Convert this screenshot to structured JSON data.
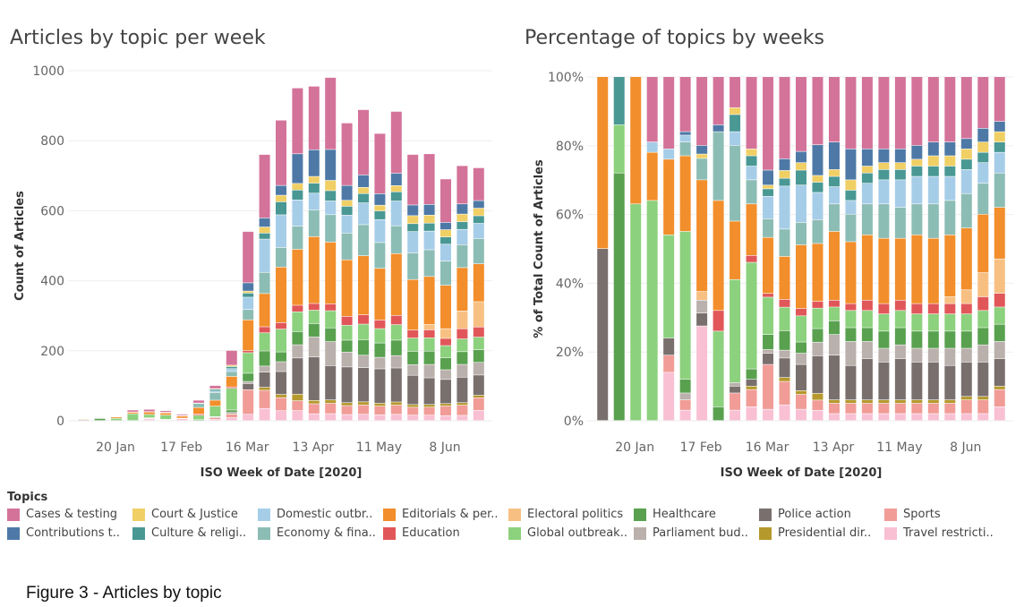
{
  "caption": "Figure 3 - Articles by topic",
  "legend": {
    "title": "Topics",
    "items": [
      {
        "label": "Cases & testing",
        "color": "#d4739a"
      },
      {
        "label": "Court & Justice",
        "color": "#f0cf65"
      },
      {
        "label": "Domestic outbr..",
        "color": "#a6cde8"
      },
      {
        "label": "Editorials & per..",
        "color": "#f28e2b"
      },
      {
        "label": "Electoral politics",
        "color": "#f7c082"
      },
      {
        "label": "Healthcare",
        "color": "#59a14f"
      },
      {
        "label": "Police action",
        "color": "#79706e"
      },
      {
        "label": "Sports",
        "color": "#f19c97"
      },
      {
        "label": "Contributions t..",
        "color": "#4e79a7"
      },
      {
        "label": "Culture & religi..",
        "color": "#499894"
      },
      {
        "label": "Economy & fina..",
        "color": "#8cbdb5"
      },
      {
        "label": "Education",
        "color": "#e15759"
      },
      {
        "label": "Global outbreak..",
        "color": "#8cd17d"
      },
      {
        "label": "Parliament bud..",
        "color": "#bab0ac"
      },
      {
        "label": "Presidential dir..",
        "color": "#b6992d"
      },
      {
        "label": "Travel restricti..",
        "color": "#f9c0d4"
      }
    ]
  },
  "chart_data": [
    {
      "type": "bar",
      "stacked": true,
      "title": "Articles by topic per week",
      "xlabel": "ISO Week of Date [2020]",
      "ylabel": "Count of Articles",
      "ylim": [
        0,
        1000
      ],
      "yticks": [
        "0",
        "200",
        "400",
        "600",
        "800",
        "1000"
      ],
      "xtick_labels": [
        {
          "week": 4,
          "label": "20 Jan"
        },
        {
          "week": 8,
          "label": "17 Feb"
        },
        {
          "week": 12,
          "label": "16 Mar"
        },
        {
          "week": 16,
          "label": "13 Apr"
        },
        {
          "week": 20,
          "label": "11 May"
        },
        {
          "week": 24,
          "label": "8 Jun"
        }
      ],
      "weeks": [
        2,
        3,
        4,
        5,
        6,
        7,
        8,
        9,
        10,
        11,
        12,
        13,
        14,
        15,
        16,
        17,
        18,
        19,
        20,
        21,
        22,
        23,
        24,
        25,
        26
      ],
      "stack_order": [
        "Travel restricti..",
        "Sports",
        "Presidential dir..",
        "Police action",
        "Parliament bud..",
        "Healthcare",
        "Global outbreak..",
        "Education",
        "Electoral politics",
        "Editorials & per..",
        "Economy & fina..",
        "Domestic outbr..",
        "Culture & religi..",
        "Court & Justice",
        "Contributions t..",
        "Cases & testing"
      ],
      "totals": [
        4,
        8,
        10,
        30,
        32,
        28,
        18,
        58,
        100,
        200,
        540,
        760,
        858,
        950,
        955,
        980,
        850,
        888,
        820,
        883,
        760,
        762,
        690,
        728,
        722
      ],
      "shares": [
        [
          0,
          0,
          0,
          0.5,
          0,
          0,
          0,
          0,
          0,
          0.5,
          0,
          0,
          0,
          0,
          0,
          0
        ],
        [
          0,
          0,
          0,
          0,
          0,
          0.72,
          0.14,
          0,
          0,
          0,
          0,
          0,
          0.14,
          0,
          0,
          0
        ],
        [
          0,
          0,
          0,
          0,
          0,
          0,
          0.63,
          0,
          0,
          0.37,
          0,
          0,
          0,
          0,
          0,
          0
        ],
        [
          0,
          0,
          0,
          0,
          0,
          0,
          0.64,
          0,
          0,
          0.14,
          0,
          0.03,
          0,
          0,
          0,
          0.19
        ],
        [
          0.14,
          0.05,
          0,
          0.05,
          0,
          0,
          0.3,
          0,
          0,
          0.22,
          0,
          0.03,
          0,
          0,
          0,
          0.21
        ],
        [
          0.03,
          0.03,
          0,
          0,
          0.02,
          0.04,
          0.43,
          0,
          0,
          0.22,
          0.04,
          0.02,
          0,
          0,
          0.01,
          0.16
        ],
        [
          0.22,
          0,
          0,
          0.03,
          0.03,
          0,
          0,
          0,
          0.02,
          0.26,
          0.05,
          0,
          0,
          0.01,
          0.02,
          0.16
        ],
        [
          0,
          0,
          0,
          0,
          0,
          0.04,
          0.22,
          0.06,
          0,
          0.32,
          0.2,
          0,
          0,
          0,
          0.02,
          0.14
        ],
        [
          0.03,
          0.05,
          0,
          0.02,
          0.01,
          0,
          0.3,
          0,
          0,
          0.17,
          0.22,
          0.04,
          0.05,
          0.02,
          0,
          0.09
        ],
        [
          0.04,
          0.05,
          0.01,
          0.02,
          0,
          0.03,
          0.31,
          0.02,
          0,
          0.15,
          0.07,
          0.04,
          0.03,
          0.02,
          0,
          0.21
        ],
        [
          0.03,
          0.12,
          0,
          0.03,
          0.01,
          0.04,
          0.1,
          0.01,
          0,
          0.15,
          0.05,
          0.06,
          0.02,
          0.01,
          0.04,
          0.25
        ],
        [
          0.04,
          0.06,
          0.01,
          0.05,
          0.02,
          0.05,
          0.06,
          0.02,
          0,
          0.11,
          0.07,
          0.11,
          0.02,
          0.02,
          0.03,
          0.21
        ],
        [
          0.03,
          0.04,
          0.01,
          0.07,
          0.03,
          0.03,
          0.07,
          0.02,
          0,
          0.17,
          0.06,
          0.1,
          0.04,
          0.02,
          0.03,
          0.2
        ],
        [
          0.03,
          0.03,
          0.02,
          0.11,
          0.04,
          0.04,
          0.06,
          0.02,
          0,
          0.17,
          0.07,
          0.08,
          0.03,
          0.02,
          0.09,
          0.2
        ],
        [
          0.02,
          0.03,
          0.01,
          0.13,
          0.06,
          0.04,
          0.04,
          0.02,
          0,
          0.2,
          0.08,
          0.05,
          0.03,
          0.02,
          0.08,
          0.19
        ],
        [
          0.02,
          0.03,
          0.01,
          0.1,
          0.07,
          0.04,
          0.05,
          0.02,
          0,
          0.18,
          0.08,
          0.04,
          0.03,
          0.03,
          0.09,
          0.21
        ],
        [
          0.02,
          0.03,
          0.01,
          0.12,
          0.05,
          0.04,
          0.05,
          0.03,
          0,
          0.19,
          0.09,
          0.06,
          0.03,
          0.02,
          0.05,
          0.21
        ],
        [
          0.02,
          0.03,
          0.01,
          0.11,
          0.04,
          0.05,
          0.05,
          0.03,
          0,
          0.19,
          0.1,
          0.07,
          0.03,
          0.02,
          0.04,
          0.21
        ],
        [
          0.02,
          0.03,
          0.01,
          0.12,
          0.04,
          0.05,
          0.05,
          0.03,
          0,
          0.18,
          0.09,
          0.08,
          0.03,
          0.02,
          0.04,
          0.21
        ],
        [
          0.02,
          0.03,
          0.01,
          0.11,
          0.04,
          0.05,
          0.05,
          0.03,
          0,
          0.2,
          0.09,
          0.08,
          0.03,
          0.02,
          0.04,
          0.2
        ],
        [
          0.02,
          0.03,
          0.01,
          0.11,
          0.04,
          0.05,
          0.05,
          0.03,
          0,
          0.19,
          0.1,
          0.08,
          0.03,
          0.03,
          0.04,
          0.19
        ],
        [
          0.02,
          0.03,
          0.01,
          0.1,
          0.05,
          0.05,
          0.05,
          0.03,
          0.02,
          0.18,
          0.1,
          0.07,
          0.03,
          0.03,
          0.04,
          0.19
        ],
        [
          0.02,
          0.04,
          0.01,
          0.1,
          0.04,
          0.05,
          0.05,
          0.03,
          0.04,
          0.18,
          0.1,
          0.07,
          0.03,
          0.03,
          0.03,
          0.18
        ],
        [
          0.02,
          0.04,
          0.01,
          0.1,
          0.05,
          0.05,
          0.05,
          0.04,
          0.07,
          0.17,
          0.09,
          0.06,
          0.03,
          0.03,
          0.04,
          0.15
        ],
        [
          0.04,
          0.05,
          0.01,
          0.08,
          0.05,
          0.05,
          0.05,
          0.04,
          0.1,
          0.15,
          0.1,
          0.06,
          0.03,
          0.03,
          0.03,
          0.13
        ]
      ]
    },
    {
      "type": "bar",
      "stacked": true,
      "normalized": true,
      "title": "Percentage of topics by weeks",
      "xlabel": "ISO Week of Date [2020]",
      "ylabel": "% of Total Count of Articles",
      "ylim": [
        0,
        100
      ],
      "yticks": [
        "0%",
        "20%",
        "40%",
        "60%",
        "80%",
        "100%"
      ],
      "xtick_labels": [
        {
          "week": 4,
          "label": "20 Jan"
        },
        {
          "week": 8,
          "label": "17 Feb"
        },
        {
          "week": 12,
          "label": "16 Mar"
        },
        {
          "week": 16,
          "label": "13 Apr"
        },
        {
          "week": 20,
          "label": "11 May"
        },
        {
          "week": 24,
          "label": "8 Jun"
        }
      ],
      "note": "Uses the same weekly topic shares as the left chart (100% stacked)."
    }
  ]
}
